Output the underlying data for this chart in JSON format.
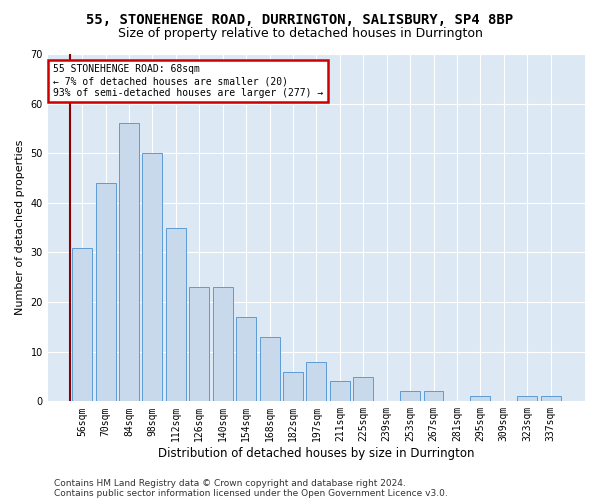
{
  "title1": "55, STONEHENGE ROAD, DURRINGTON, SALISBURY, SP4 8BP",
  "title2": "Size of property relative to detached houses in Durrington",
  "xlabel": "Distribution of detached houses by size in Durrington",
  "ylabel": "Number of detached properties",
  "bar_labels": [
    "56sqm",
    "70sqm",
    "84sqm",
    "98sqm",
    "112sqm",
    "126sqm",
    "140sqm",
    "154sqm",
    "168sqm",
    "182sqm",
    "197sqm",
    "211sqm",
    "225sqm",
    "239sqm",
    "253sqm",
    "267sqm",
    "281sqm",
    "295sqm",
    "309sqm",
    "323sqm",
    "337sqm"
  ],
  "bar_values": [
    31,
    44,
    56,
    50,
    35,
    23,
    23,
    17,
    13,
    6,
    8,
    4,
    5,
    0,
    2,
    2,
    0,
    1,
    0,
    1,
    1
  ],
  "bar_color": "#c8d9ec",
  "bar_edge_color": "#5b9bd5",
  "highlight_line_color": "#8B0000",
  "annotation_line1": "55 STONEHENGE ROAD: 68sqm",
  "annotation_line2": "← 7% of detached houses are smaller (20)",
  "annotation_line3": "93% of semi-detached houses are larger (277) →",
  "annotation_box_color": "#ffffff",
  "annotation_box_edge": "#cc0000",
  "ylim": [
    0,
    70
  ],
  "yticks": [
    0,
    10,
    20,
    30,
    40,
    50,
    60,
    70
  ],
  "background_color": "#dce9f5",
  "footer1": "Contains HM Land Registry data © Crown copyright and database right 2024.",
  "footer2": "Contains public sector information licensed under the Open Government Licence v3.0.",
  "title1_fontsize": 10,
  "title2_fontsize": 9,
  "xlabel_fontsize": 8.5,
  "ylabel_fontsize": 8,
  "tick_fontsize": 7,
  "footer_fontsize": 6.5
}
